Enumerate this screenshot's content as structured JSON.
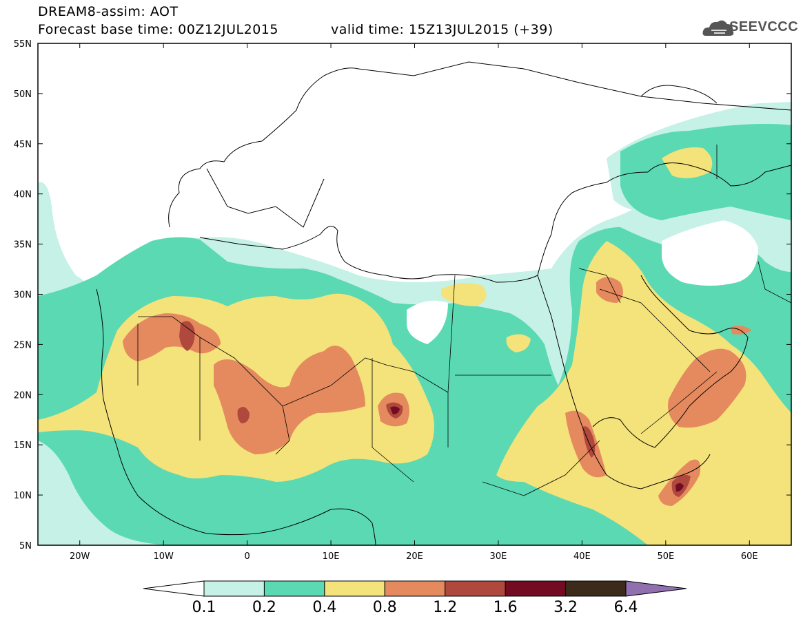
{
  "header": {
    "title": "DREAM8-assim: AOT",
    "base_time": "Forecast base time: 00Z12JUL2015",
    "valid_time": "valid time: 15Z13JUL2015 (+39)"
  },
  "logo": {
    "text": "SEEVCCC",
    "icon": "cloud-logo-icon"
  },
  "axes": {
    "lat_labels": [
      "55N",
      "50N",
      "45N",
      "40N",
      "35N",
      "30N",
      "25N",
      "20N",
      "15N",
      "10N",
      "5N"
    ],
    "lon_labels": [
      "20W",
      "10W",
      "0",
      "10E",
      "20E",
      "30E",
      "40E",
      "50E",
      "60E"
    ]
  },
  "colorbar": {
    "colors": [
      "#c5f1e6",
      "#5ad9b3",
      "#f4e27a",
      "#e58a5e",
      "#b0493d",
      "#730b23",
      "#3c2a1a"
    ],
    "over_color": "#9170b0",
    "under_color": "#ffffff",
    "labels": [
      "0.1",
      "0.2",
      "0.4",
      "0.8",
      "1.2",
      "1.6",
      "3.2",
      "6.4"
    ]
  }
}
